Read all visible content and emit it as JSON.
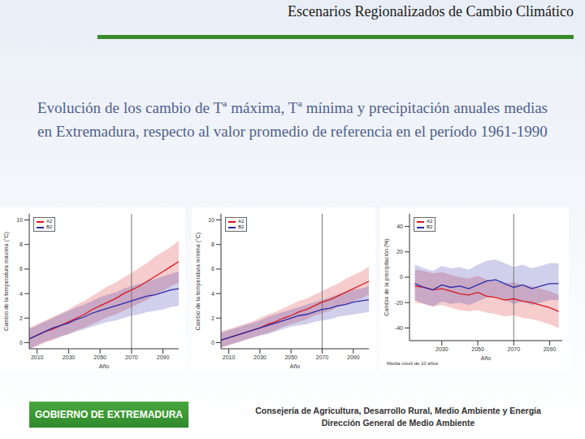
{
  "slide": {
    "title": "Escenarios Regionalizados de Cambio Climático",
    "text": "Evolución de los cambio de Tª máxima, Tª mínima y precipitación anuales medias en Extremadura, respecto al valor promedio de referencia en el período 1961-1990",
    "footer": {
      "logo": "GOBIERNO DE EXTREMADURA",
      "lines": [
        "Consejería de Agricultura, Desarrollo Rural, Medio Ambiente y Energía",
        "Dirección General de Medio Ambiente"
      ]
    }
  },
  "chart_data": [
    {
      "type": "line",
      "x_label": "Año",
      "y_label": "Cambio de la temperatura máxima (°C)",
      "legend": "upper left",
      "reference_x": 2070,
      "xlim": [
        2005,
        2100
      ],
      "xticks": [
        2010,
        2030,
        2050,
        2070,
        2090
      ],
      "ylim": [
        -0.5,
        10.5
      ],
      "yticks": [
        0,
        2,
        4,
        6,
        8,
        10
      ],
      "x": [
        2005,
        2010,
        2015,
        2020,
        2025,
        2030,
        2035,
        2040,
        2045,
        2050,
        2055,
        2060,
        2065,
        2070,
        2075,
        2080,
        2085,
        2090,
        2095,
        2100
      ],
      "series": [
        {
          "name": "A2",
          "color": "#d7191c",
          "values": [
            0.3,
            0.6,
            0.9,
            1.1,
            1.4,
            1.7,
            2.0,
            2.3,
            2.7,
            3.0,
            3.3,
            3.6,
            4.0,
            4.3,
            4.6,
            5.0,
            5.4,
            5.8,
            6.2,
            6.6
          ],
          "lower": [
            -0.5,
            -0.3,
            0.0,
            0.2,
            0.5,
            0.7,
            1.0,
            1.2,
            1.5,
            1.8,
            2.1,
            2.3,
            2.6,
            2.9,
            3.2,
            3.5,
            3.9,
            4.2,
            4.6,
            4.9
          ],
          "upper": [
            1.2,
            1.5,
            1.8,
            2.1,
            2.4,
            2.7,
            3.1,
            3.4,
            3.8,
            4.2,
            4.6,
            4.9,
            5.3,
            5.7,
            6.1,
            6.5,
            7.0,
            7.4,
            7.8,
            8.3
          ]
        },
        {
          "name": "B2",
          "color": "#2b2ba8",
          "values": [
            0.3,
            0.6,
            0.9,
            1.2,
            1.4,
            1.6,
            1.9,
            2.1,
            2.4,
            2.6,
            2.8,
            3.0,
            3.2,
            3.4,
            3.6,
            3.8,
            3.9,
            4.1,
            4.3,
            4.4
          ],
          "lower": [
            -0.5,
            -0.2,
            0.1,
            0.3,
            0.5,
            0.7,
            0.9,
            1.1,
            1.3,
            1.5,
            1.7,
            1.8,
            2.0,
            2.2,
            2.3,
            2.5,
            2.6,
            2.7,
            2.9,
            3.0
          ],
          "upper": [
            1.1,
            1.4,
            1.7,
            2.0,
            2.3,
            2.6,
            2.9,
            3.1,
            3.4,
            3.7,
            3.9,
            4.1,
            4.4,
            4.6,
            4.8,
            5.0,
            5.2,
            5.4,
            5.6,
            5.8
          ]
        }
      ]
    },
    {
      "type": "line",
      "x_label": "Año",
      "y_label": "Cambio de la temperatura mínima (°C)",
      "legend": "upper left",
      "reference_x": 2070,
      "xlim": [
        2005,
        2100
      ],
      "xticks": [
        2010,
        2030,
        2050,
        2070,
        2090
      ],
      "ylim": [
        -0.5,
        10.5
      ],
      "yticks": [
        0,
        2,
        4,
        6,
        8,
        10
      ],
      "x": [
        2005,
        2010,
        2015,
        2020,
        2025,
        2030,
        2035,
        2040,
        2045,
        2050,
        2055,
        2060,
        2065,
        2070,
        2075,
        2080,
        2085,
        2090,
        2095,
        2100
      ],
      "series": [
        {
          "name": "A2",
          "color": "#d7191c",
          "values": [
            0.2,
            0.4,
            0.6,
            0.8,
            1.0,
            1.2,
            1.5,
            1.7,
            2.0,
            2.2,
            2.5,
            2.7,
            3.0,
            3.3,
            3.5,
            3.8,
            4.1,
            4.4,
            4.7,
            5.0
          ],
          "lower": [
            -0.4,
            -0.2,
            0.0,
            0.2,
            0.4,
            0.6,
            0.8,
            1.0,
            1.3,
            1.5,
            1.7,
            1.9,
            2.2,
            2.4,
            2.6,
            2.9,
            3.1,
            3.4,
            3.6,
            3.9
          ],
          "upper": [
            0.9,
            1.1,
            1.3,
            1.5,
            1.7,
            2.0,
            2.3,
            2.5,
            2.8,
            3.1,
            3.4,
            3.6,
            3.9,
            4.2,
            4.5,
            4.8,
            5.2,
            5.5,
            5.8,
            6.2
          ]
        },
        {
          "name": "B2",
          "color": "#2b2ba8",
          "values": [
            0.2,
            0.4,
            0.6,
            0.8,
            1.0,
            1.2,
            1.4,
            1.6,
            1.8,
            2.0,
            2.2,
            2.3,
            2.5,
            2.7,
            2.8,
            3.0,
            3.1,
            3.3,
            3.4,
            3.5
          ],
          "lower": [
            -0.4,
            -0.2,
            0.0,
            0.2,
            0.4,
            0.6,
            0.7,
            0.9,
            1.1,
            1.3,
            1.4,
            1.5,
            1.7,
            1.8,
            1.9,
            2.1,
            2.2,
            2.3,
            2.4,
            2.5
          ],
          "upper": [
            0.8,
            1.0,
            1.2,
            1.4,
            1.6,
            1.8,
            2.1,
            2.3,
            2.5,
            2.7,
            2.9,
            3.1,
            3.3,
            3.5,
            3.7,
            3.9,
            4.1,
            4.3,
            4.4,
            4.6
          ]
        }
      ]
    },
    {
      "type": "line",
      "x_label": "Año",
      "y_label": "Cambio de la precipitación (%)",
      "note": "Media móvil de 10 años",
      "legend": "upper left",
      "reference_x": 2070,
      "xlim": [
        2012,
        2097
      ],
      "xticks": [
        2030,
        2050,
        2070,
        2090
      ],
      "ylim": [
        -50,
        50
      ],
      "yticks": [
        -40,
        -20,
        0,
        20,
        40
      ],
      "x": [
        2015,
        2020,
        2025,
        2030,
        2035,
        2040,
        2045,
        2050,
        2055,
        2060,
        2065,
        2070,
        2075,
        2080,
        2085,
        2090,
        2095
      ],
      "series": [
        {
          "name": "A2",
          "color": "#d7191c",
          "values": [
            -7,
            -8,
            -10,
            -9,
            -11,
            -13,
            -14,
            -12,
            -15,
            -16,
            -18,
            -17,
            -19,
            -20,
            -22,
            -24,
            -27
          ],
          "lower": [
            -20,
            -21,
            -23,
            -22,
            -24,
            -26,
            -27,
            -26,
            -28,
            -29,
            -31,
            -30,
            -32,
            -33,
            -35,
            -37,
            -40
          ],
          "upper": [
            6,
            5,
            3,
            4,
            2,
            0,
            -1,
            1,
            -2,
            -3,
            -5,
            -4,
            -6,
            -7,
            -9,
            -11,
            -14
          ]
        },
        {
          "name": "B2",
          "color": "#2b2ba8",
          "values": [
            -5,
            -8,
            -10,
            -6,
            -8,
            -7,
            -9,
            -6,
            -3,
            -2,
            -5,
            -8,
            -6,
            -9,
            -7,
            -5,
            -5
          ],
          "lower": [
            -18,
            -21,
            -23,
            -19,
            -21,
            -20,
            -22,
            -19,
            -16,
            -15,
            -18,
            -21,
            -19,
            -22,
            -20,
            -18,
            -18
          ],
          "upper": [
            10,
            7,
            5,
            9,
            7,
            8,
            6,
            10,
            13,
            14,
            11,
            8,
            10,
            7,
            9,
            11,
            11
          ]
        }
      ]
    }
  ]
}
